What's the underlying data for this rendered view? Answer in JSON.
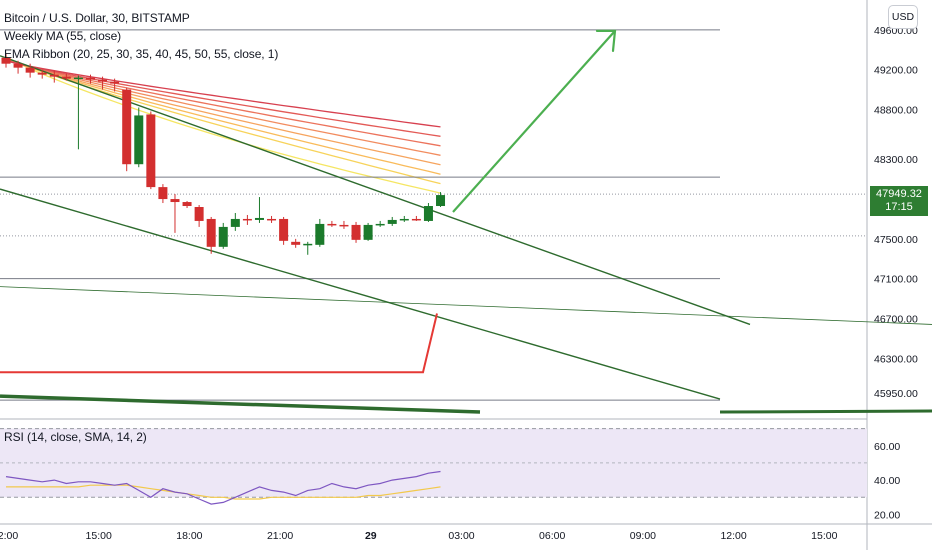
{
  "legend": {
    "symbol": "Bitcoin / U.S. Dollar, 30, BITSTAMP",
    "ma": "Weekly MA (55, close)",
    "ema": "EMA Ribbon (20, 25, 30, 35, 40, 45, 50, 55, close, 1)",
    "rsi": "RSI (14, close, SMA, 14, 2)"
  },
  "currency_button": "USD",
  "last_price": "47949.32",
  "countdown": "17:15",
  "colors": {
    "up": "#1b7a2b",
    "down": "#d32f2f",
    "trend": "#2e6b2e",
    "arrow": "#4caf50",
    "red_line": "#e53935",
    "rsi": "#7e57c2",
    "rsi_ma": "#f2c94c",
    "rsi_band": "#ede7f6",
    "price_label": "#2e7d32"
  },
  "chart_data": {
    "type": "candlestick",
    "price_axis": {
      "ticks": [
        "49600.00",
        "49200.00",
        "48800.00",
        "48300.00",
        "47949.32",
        "47500.00",
        "47100.00",
        "46700.00",
        "46300.00",
        "45950.00"
      ],
      "range": [
        45700,
        49900
      ]
    },
    "time_axis": {
      "ticks": [
        "2:00",
        "15:00",
        "18:00",
        "21:00",
        "29",
        "03:00",
        "06:00",
        "09:00",
        "12:00",
        "15:00"
      ]
    },
    "candles": [
      {
        "o": 49320,
        "h": 49360,
        "l": 49220,
        "c": 49260
      },
      {
        "o": 49260,
        "h": 49290,
        "l": 49160,
        "c": 49220
      },
      {
        "o": 49220,
        "h": 49260,
        "l": 49120,
        "c": 49170
      },
      {
        "o": 49170,
        "h": 49200,
        "l": 49110,
        "c": 49150
      },
      {
        "o": 49150,
        "h": 49190,
        "l": 49070,
        "c": 49130
      },
      {
        "o": 49130,
        "h": 49160,
        "l": 49090,
        "c": 49110
      },
      {
        "o": 49110,
        "h": 49140,
        "l": 48400,
        "c": 49120
      },
      {
        "o": 49120,
        "h": 49150,
        "l": 49060,
        "c": 49100
      },
      {
        "o": 49100,
        "h": 49130,
        "l": 49000,
        "c": 49080
      },
      {
        "o": 49080,
        "h": 49110,
        "l": 48980,
        "c": 49060
      },
      {
        "o": 49000,
        "h": 49020,
        "l": 48180,
        "c": 48250
      },
      {
        "o": 48250,
        "h": 48820,
        "l": 48220,
        "c": 48740
      },
      {
        "o": 48750,
        "h": 48780,
        "l": 48000,
        "c": 48020
      },
      {
        "o": 48020,
        "h": 48050,
        "l": 47860,
        "c": 47900
      },
      {
        "o": 47900,
        "h": 47950,
        "l": 47560,
        "c": 47870
      },
      {
        "o": 47870,
        "h": 47880,
        "l": 47810,
        "c": 47830
      },
      {
        "o": 47820,
        "h": 47840,
        "l": 47620,
        "c": 47680
      },
      {
        "o": 47700,
        "h": 47720,
        "l": 47350,
        "c": 47420
      },
      {
        "o": 47420,
        "h": 47660,
        "l": 47400,
        "c": 47620
      },
      {
        "o": 47620,
        "h": 47760,
        "l": 47580,
        "c": 47700
      },
      {
        "o": 47700,
        "h": 47740,
        "l": 47640,
        "c": 47690
      },
      {
        "o": 47690,
        "h": 47920,
        "l": 47660,
        "c": 47710
      },
      {
        "o": 47700,
        "h": 47730,
        "l": 47660,
        "c": 47690
      },
      {
        "o": 47700,
        "h": 47720,
        "l": 47440,
        "c": 47480
      },
      {
        "o": 47470,
        "h": 47500,
        "l": 47410,
        "c": 47440
      },
      {
        "o": 47440,
        "h": 47470,
        "l": 47340,
        "c": 47450
      },
      {
        "o": 47440,
        "h": 47700,
        "l": 47420,
        "c": 47650
      },
      {
        "o": 47650,
        "h": 47680,
        "l": 47620,
        "c": 47640
      },
      {
        "o": 47640,
        "h": 47680,
        "l": 47600,
        "c": 47630
      },
      {
        "o": 47640,
        "h": 47670,
        "l": 47460,
        "c": 47490
      },
      {
        "o": 47490,
        "h": 47660,
        "l": 47480,
        "c": 47640
      },
      {
        "o": 47640,
        "h": 47680,
        "l": 47620,
        "c": 47650
      },
      {
        "o": 47650,
        "h": 47720,
        "l": 47630,
        "c": 47690
      },
      {
        "o": 47690,
        "h": 47730,
        "l": 47670,
        "c": 47700
      },
      {
        "o": 47700,
        "h": 47730,
        "l": 47680,
        "c": 47690
      },
      {
        "o": 47680,
        "h": 47860,
        "l": 47670,
        "c": 47830
      },
      {
        "o": 47830,
        "h": 47970,
        "l": 47820,
        "c": 47940
      }
    ],
    "horizontal_lines": [
      49600,
      48120,
      47100,
      45880
    ],
    "dotted_lines": [
      47949,
      47530
    ],
    "rsi": {
      "axis_ticks": [
        "60.00",
        "40.00",
        "20.00"
      ],
      "range": [
        15,
        75
      ],
      "band": [
        30,
        70
      ],
      "values": [
        42,
        41,
        40,
        39,
        40,
        38,
        39,
        39,
        38,
        37,
        38,
        34,
        30,
        35,
        33,
        32,
        29,
        26,
        27,
        30,
        33,
        36,
        34,
        33,
        31,
        34,
        35,
        38,
        36,
        35,
        37,
        38,
        40,
        41,
        42,
        44,
        45
      ],
      "ma_values": [
        36,
        36,
        36,
        36,
        36,
        36,
        36,
        37,
        37,
        37,
        37,
        36,
        35,
        34,
        33,
        32,
        31,
        30,
        30,
        29,
        29,
        29,
        30,
        30,
        30,
        30,
        30,
        30,
        30,
        30,
        31,
        31,
        32,
        33,
        34,
        35,
        36
      ]
    }
  }
}
